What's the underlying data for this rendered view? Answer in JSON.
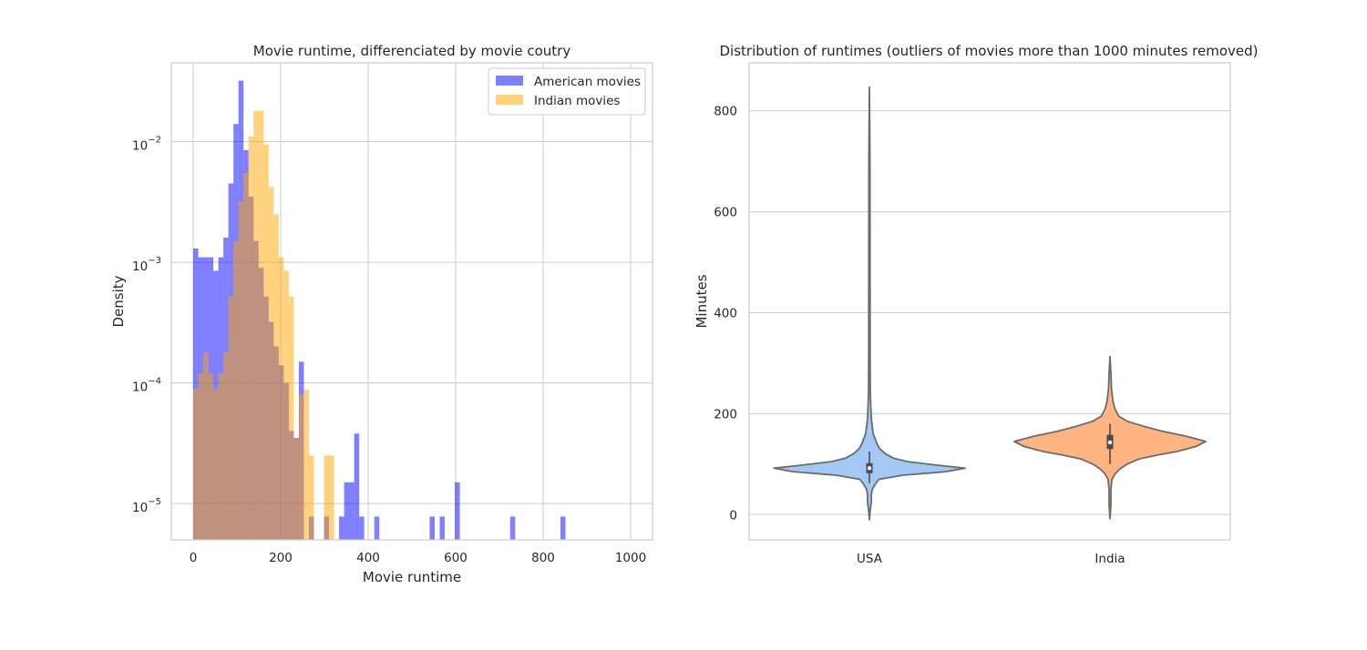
{
  "chart_data": [
    {
      "type": "histogram",
      "title": "Movie runtime, differenciated by movie coutry",
      "xlabel": "Movie runtime",
      "ylabel": "Density",
      "xlim": [
        -50,
        1050
      ],
      "ylim": [
        5e-06,
        0.045
      ],
      "yscale": "log",
      "xticks": [
        "0",
        "200",
        "400",
        "600",
        "800",
        "1000"
      ],
      "yticks": [
        {
          "base": "10",
          "exp": "−5",
          "value": 1e-05
        },
        {
          "base": "10",
          "exp": "−4",
          "value": 0.0001
        },
        {
          "base": "10",
          "exp": "−3",
          "value": 0.001
        },
        {
          "base": "10",
          "exp": "−2",
          "value": 0.01
        }
      ],
      "grid": true,
      "legend_position": "top-right",
      "bin_width": 11.5,
      "series": [
        {
          "name": "American movies",
          "color": "#0000ff",
          "opacity": 0.5,
          "bins": [
            [
              0,
              0.0013
            ],
            [
              11.5,
              0.0011
            ],
            [
              23,
              0.0011
            ],
            [
              34.5,
              0.0011
            ],
            [
              46,
              0.00085
            ],
            [
              57.5,
              0.0011
            ],
            [
              69,
              0.0016
            ],
            [
              80.5,
              0.0045
            ],
            [
              92,
              0.014
            ],
            [
              103.5,
              0.032
            ],
            [
              115,
              0.0085
            ],
            [
              126.5,
              0.0035
            ],
            [
              138,
              0.0015
            ],
            [
              149.5,
              0.0009
            ],
            [
              161,
              0.00052
            ],
            [
              172.5,
              0.00032
            ],
            [
              184,
              0.0002
            ],
            [
              195.5,
              0.00014
            ],
            [
              207,
              0.0001
            ],
            [
              218.5,
              4e-05
            ],
            [
              230,
              3.5e-05
            ],
            [
              241.5,
              0.00015
            ],
            [
              264.5,
              7.8e-06
            ],
            [
              299,
              7.8e-06
            ],
            [
              333.5,
              7.8e-06
            ],
            [
              345,
              1.5e-05
            ],
            [
              356.5,
              1.5e-05
            ],
            [
              368,
              3.8e-05
            ],
            [
              379.5,
              7.8e-06
            ],
            [
              414,
              7.8e-06
            ],
            [
              540.5,
              7.8e-06
            ],
            [
              563.5,
              7.8e-06
            ],
            [
              598,
              1.5e-05
            ],
            [
              724.5,
              7.8e-06
            ],
            [
              839.5,
              7.8e-06
            ]
          ]
        },
        {
          "name": "Indian movies",
          "color": "#ffa500",
          "opacity": 0.5,
          "bins": [
            [
              0,
              9e-05
            ],
            [
              11.5,
              0.00012
            ],
            [
              23,
              0.00018
            ],
            [
              34.5,
              0.00012
            ],
            [
              46,
              9e-05
            ],
            [
              57.5,
              0.00012
            ],
            [
              69,
              0.00018
            ],
            [
              80.5,
              0.00052
            ],
            [
              92,
              0.0015
            ],
            [
              103.5,
              0.0032
            ],
            [
              115,
              0.0055
            ],
            [
              126.5,
              0.011
            ],
            [
              138,
              0.018
            ],
            [
              149.5,
              0.018
            ],
            [
              161,
              0.0095
            ],
            [
              172.5,
              0.0042
            ],
            [
              184,
              0.0025
            ],
            [
              195.5,
              0.0011
            ],
            [
              207,
              0.00085
            ],
            [
              218.5,
              0.00052
            ],
            [
              230,
              3.5e-05
            ],
            [
              241.5,
              8e-05
            ],
            [
              253,
              8.8e-05
            ],
            [
              264.5,
              2.5e-05
            ],
            [
              299,
              2.5e-05
            ],
            [
              310.5,
              2.5e-05
            ]
          ]
        }
      ]
    },
    {
      "type": "violin",
      "title": "Distribution of runtimes (outliers of movies more than 1000 minutes removed)",
      "xlabel": "",
      "ylabel": "Minutes",
      "categories": [
        "USA",
        "India"
      ],
      "ylim": [
        -50,
        895
      ],
      "yticks": [
        "0",
        "200",
        "400",
        "600",
        "800"
      ],
      "grid": true,
      "series": [
        {
          "category": "USA",
          "color": "#a1c9f4",
          "min": -10,
          "max": 847,
          "median": 92,
          "q1": 82,
          "q3": 102,
          "whisker_low": 62,
          "whisker_high": 125,
          "density": [
            [
              -10,
              0.0
            ],
            [
              10,
              0.01
            ],
            [
              25,
              0.02
            ],
            [
              40,
              0.02
            ],
            [
              50,
              0.03
            ],
            [
              60,
              0.06
            ],
            [
              70,
              0.1
            ],
            [
              78,
              0.35
            ],
            [
              85,
              0.8
            ],
            [
              92,
              1.0
            ],
            [
              98,
              0.7
            ],
            [
              105,
              0.4
            ],
            [
              112,
              0.25
            ],
            [
              120,
              0.17
            ],
            [
              130,
              0.11
            ],
            [
              140,
              0.08
            ],
            [
              150,
              0.06
            ],
            [
              160,
              0.04
            ],
            [
              175,
              0.03
            ],
            [
              190,
              0.02
            ],
            [
              210,
              0.015
            ],
            [
              240,
              0.01
            ],
            [
              300,
              0.008
            ],
            [
              500,
              0.007
            ],
            [
              700,
              0.006
            ],
            [
              847,
              0.0
            ]
          ]
        },
        {
          "category": "India",
          "color": "#ffb482",
          "min": -8,
          "max": 313,
          "median": 143,
          "q1": 130,
          "q3": 158,
          "whisker_low": 100,
          "whisker_high": 180,
          "density": [
            [
              -8,
              0.0
            ],
            [
              20,
              0.01
            ],
            [
              50,
              0.01
            ],
            [
              70,
              0.02
            ],
            [
              80,
              0.05
            ],
            [
              90,
              0.1
            ],
            [
              100,
              0.18
            ],
            [
              110,
              0.3
            ],
            [
              118,
              0.5
            ],
            [
              125,
              0.7
            ],
            [
              135,
              0.9
            ],
            [
              145,
              1.0
            ],
            [
              155,
              0.8
            ],
            [
              165,
              0.55
            ],
            [
              175,
              0.35
            ],
            [
              185,
              0.18
            ],
            [
              195,
              0.09
            ],
            [
              210,
              0.05
            ],
            [
              225,
              0.03
            ],
            [
              250,
              0.015
            ],
            [
              280,
              0.01
            ],
            [
              313,
              0.0
            ]
          ]
        }
      ]
    }
  ]
}
